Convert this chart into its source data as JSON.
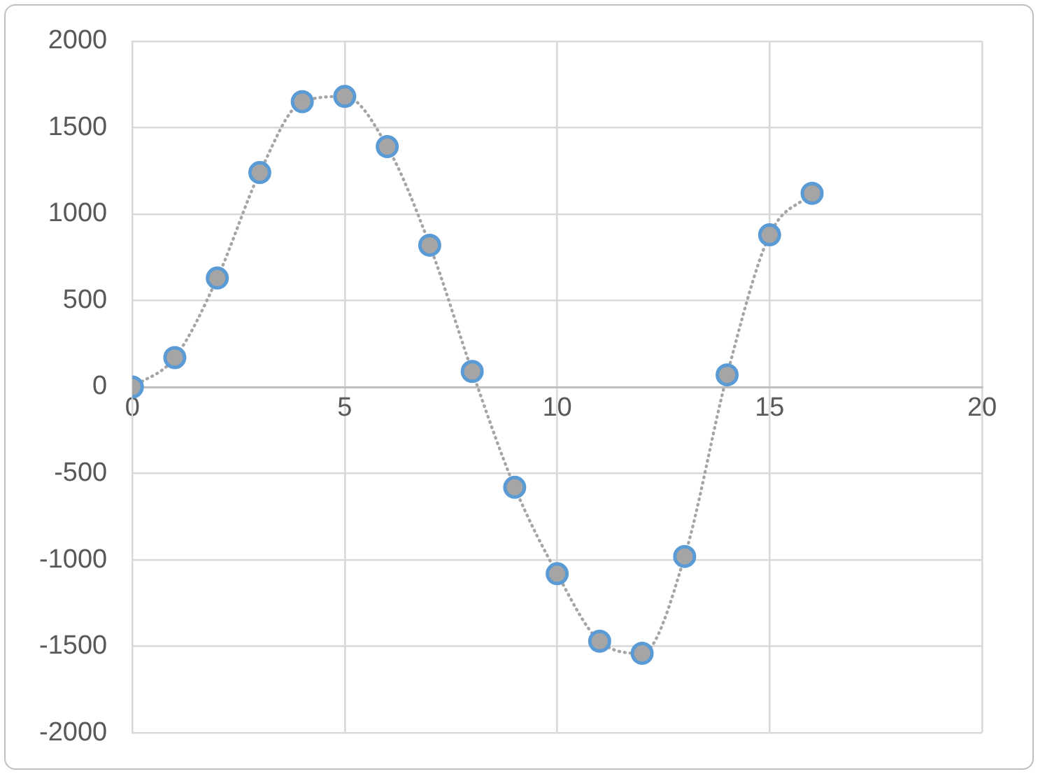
{
  "chart_data": {
    "type": "line",
    "x": [
      0,
      1,
      2,
      3,
      4,
      5,
      6,
      7,
      8,
      9,
      10,
      11,
      12,
      13,
      14,
      15,
      16
    ],
    "series": [
      {
        "color": "#a5a5a5",
        "values": [
          0,
          170,
          630,
          1240,
          1650,
          1680,
          1390,
          820,
          90,
          -580,
          -1080,
          -1470,
          -1540,
          -980,
          70,
          880,
          1120
        ]
      }
    ],
    "xlim": [
      0,
      20
    ],
    "xticks": [
      0,
      5,
      10,
      15,
      20
    ],
    "ylim": [
      -2000,
      2000
    ],
    "yticks": [
      -2000,
      -1500,
      -1000,
      -500,
      0,
      500,
      1000,
      1500,
      2000
    ],
    "grid": true,
    "legend": false,
    "marker": "circle",
    "line_style": "dotted"
  }
}
